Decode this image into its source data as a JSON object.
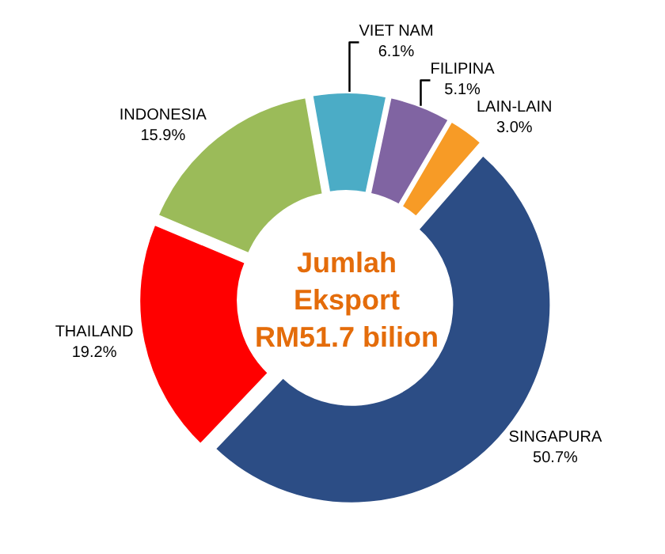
{
  "chart_data": {
    "type": "donut",
    "categories": [
      "VIET NAM",
      "FILIPINA",
      "LAIN-LAIN",
      "SINGAPURA",
      "THAILAND",
      "INDONESIA"
    ],
    "values": [
      6.1,
      5.1,
      3.0,
      50.7,
      19.2,
      15.9
    ],
    "value_labels": [
      "6.1%",
      "5.1%",
      "3.0%",
      "50.7%",
      "19.2%",
      "15.9%"
    ],
    "colors": [
      "#4bacc6",
      "#8064a2",
      "#f79b26",
      "#2c4d85",
      "#ff0000",
      "#9bbb59"
    ],
    "annotations": [
      "Jumlah\nEksport\nRM51.7 bilion"
    ],
    "legend": false
  }
}
